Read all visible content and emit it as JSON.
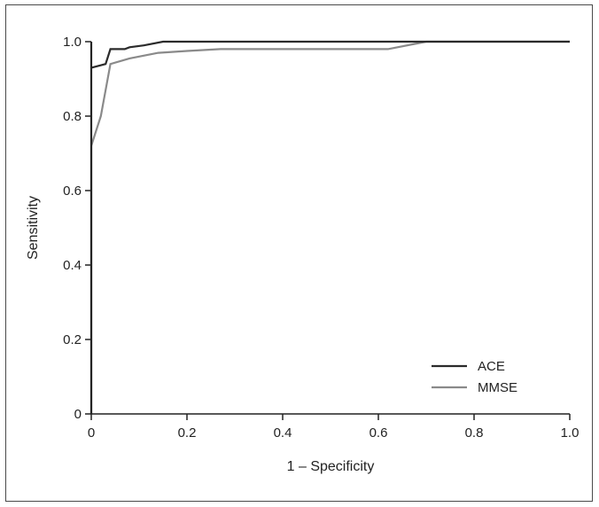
{
  "chart_data": {
    "type": "line",
    "xlabel": "1 – Specificity",
    "ylabel": "Sensitivity",
    "xlim": [
      0,
      1
    ],
    "ylim": [
      0,
      1
    ],
    "xticks": [
      {
        "v": 0,
        "label": "0"
      },
      {
        "v": 0.2,
        "label": "0.2"
      },
      {
        "v": 0.4,
        "label": "0.4"
      },
      {
        "v": 0.6,
        "label": "0.6"
      },
      {
        "v": 0.8,
        "label": "0.8"
      },
      {
        "v": 1.0,
        "label": "1.0"
      }
    ],
    "yticks": [
      {
        "v": 0,
        "label": "0"
      },
      {
        "v": 0.2,
        "label": "0.2"
      },
      {
        "v": 0.4,
        "label": "0.4"
      },
      {
        "v": 0.6,
        "label": "0.6"
      },
      {
        "v": 0.8,
        "label": "0.8"
      },
      {
        "v": 1.0,
        "label": "1.0"
      }
    ],
    "grid": false,
    "legend_position": "bottom-right",
    "series": [
      {
        "name": "ACE",
        "color": "#2b2b2b",
        "points": [
          [
            0,
            0
          ],
          [
            0,
            1.0
          ],
          [
            0,
            0.93
          ],
          [
            0.03,
            0.94
          ],
          [
            0.04,
            0.98
          ],
          [
            0.07,
            0.98
          ],
          [
            0.08,
            0.985
          ],
          [
            0.11,
            0.99
          ],
          [
            0.15,
            1.0
          ],
          [
            0.7,
            1.0
          ],
          [
            1.0,
            1.0
          ]
        ]
      },
      {
        "name": "MMSE",
        "color": "#8a8a8a",
        "points": [
          [
            0,
            0
          ],
          [
            0,
            0.72
          ],
          [
            0.02,
            0.8
          ],
          [
            0.04,
            0.94
          ],
          [
            0.08,
            0.955
          ],
          [
            0.14,
            0.97
          ],
          [
            0.2,
            0.975
          ],
          [
            0.27,
            0.98
          ],
          [
            0.62,
            0.98
          ],
          [
            0.7,
            1.0
          ],
          [
            1.0,
            1.0
          ]
        ]
      }
    ]
  }
}
